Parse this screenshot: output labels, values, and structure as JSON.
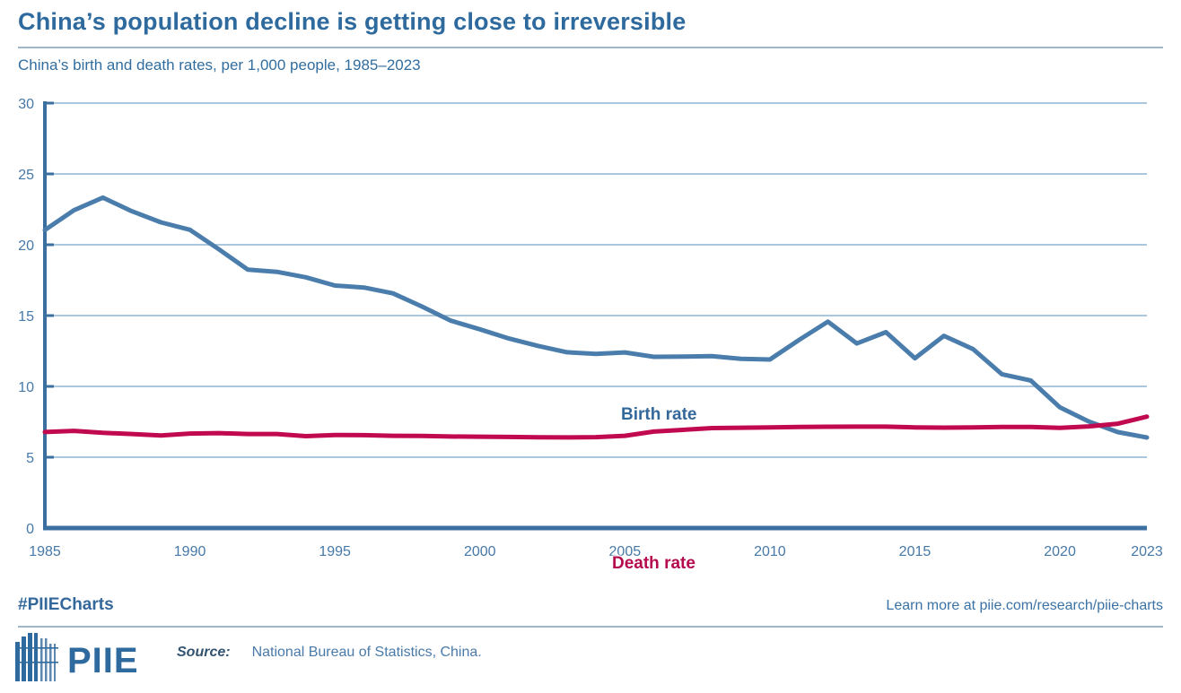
{
  "header": {
    "title": "China’s population decline is getting close to irreversible",
    "subtitle": "China’s birth and death rates, per 1,000 people, 1985–2023"
  },
  "chart_data": {
    "type": "line",
    "title": "China’s birth and death rates, per 1,000 people, 1985–2023",
    "xlabel": "",
    "ylabel": "",
    "xlim": [
      1985,
      2023
    ],
    "ylim": [
      0,
      30
    ],
    "x_ticks": [
      1985,
      1990,
      1995,
      2000,
      2005,
      2010,
      2015,
      2020,
      2023
    ],
    "y_ticks": [
      0,
      5,
      10,
      15,
      20,
      25,
      30
    ],
    "grid": "horizontal",
    "legend_position": "inline-labels",
    "x": [
      1985,
      1986,
      1987,
      1988,
      1989,
      1990,
      1991,
      1992,
      1993,
      1994,
      1995,
      1996,
      1997,
      1998,
      1999,
      2000,
      2001,
      2002,
      2003,
      2004,
      2005,
      2006,
      2007,
      2008,
      2009,
      2010,
      2011,
      2012,
      2013,
      2014,
      2015,
      2016,
      2017,
      2018,
      2019,
      2020,
      2021,
      2022,
      2023
    ],
    "series": [
      {
        "name": "Birth rate",
        "color": "#4a7dab",
        "label_color": "#34689b",
        "values": [
          21.04,
          22.43,
          23.33,
          22.37,
          21.58,
          21.06,
          19.68,
          18.24,
          18.09,
          17.7,
          17.12,
          16.98,
          16.57,
          15.64,
          14.64,
          14.03,
          13.38,
          12.86,
          12.41,
          12.29,
          12.4,
          12.09,
          12.1,
          12.14,
          11.95,
          11.9,
          13.27,
          14.57,
          13.03,
          13.83,
          11.99,
          13.57,
          12.64,
          10.86,
          10.41,
          8.52,
          7.52,
          6.77,
          6.39
        ]
      },
      {
        "name": "Death rate",
        "color": "#c1094f",
        "label_color": "#b50a4e",
        "values": [
          6.78,
          6.86,
          6.72,
          6.64,
          6.54,
          6.67,
          6.7,
          6.64,
          6.64,
          6.49,
          6.57,
          6.56,
          6.51,
          6.5,
          6.46,
          6.45,
          6.43,
          6.41,
          6.4,
          6.42,
          6.51,
          6.81,
          6.93,
          7.06,
          7.08,
          7.11,
          7.14,
          7.15,
          7.16,
          7.16,
          7.11,
          7.09,
          7.11,
          7.13,
          7.14,
          7.07,
          7.18,
          7.37,
          7.87
        ]
      }
    ]
  },
  "colors": {
    "title": "#2e6a9d",
    "axis": "#3a6f9f",
    "tick_label": "#4678a8",
    "gridline": "#abc7dd"
  },
  "footer": {
    "hashtag": "#PIIECharts",
    "learn_more": "Learn more at piie.com/research/piie-charts",
    "logo_text": "PIIE",
    "source_label": "Source:",
    "source_text": "National Bureau of Statistics, China."
  }
}
